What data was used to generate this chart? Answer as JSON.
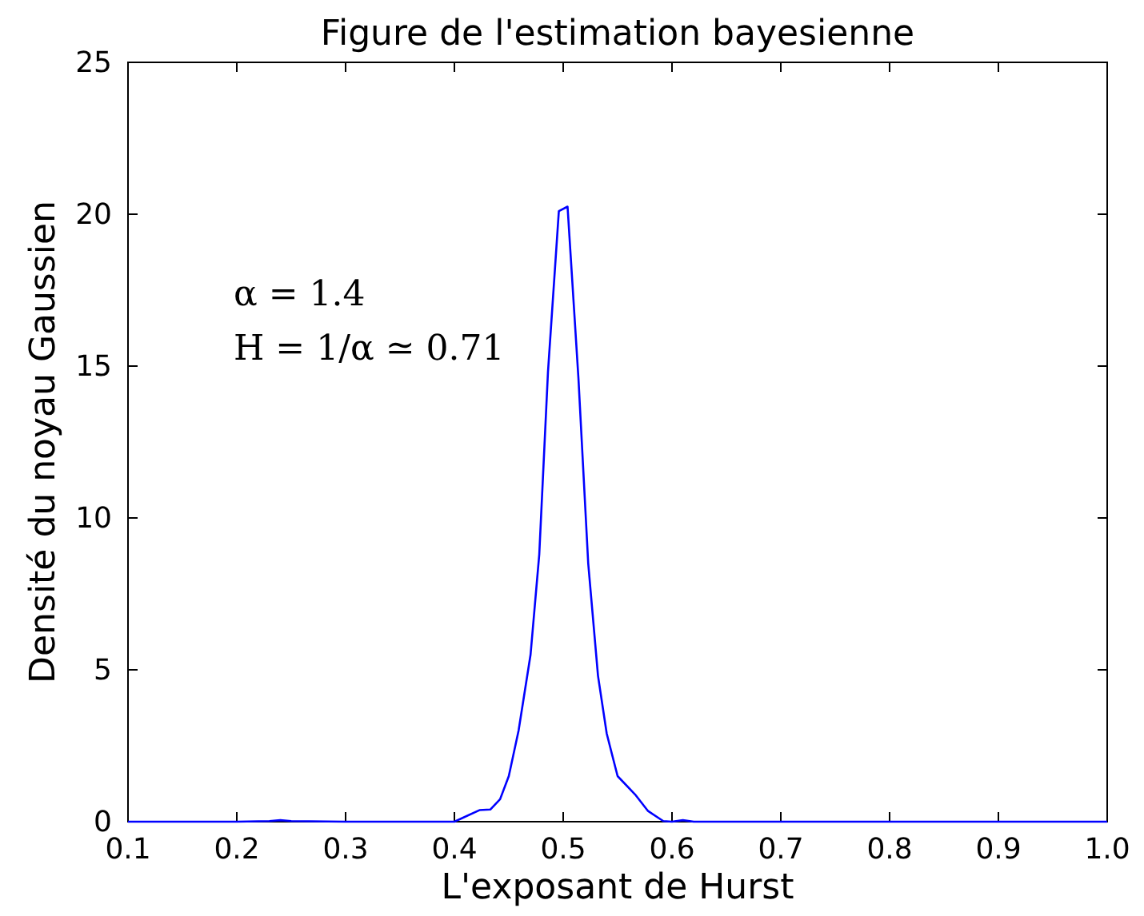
{
  "chart_data": {
    "type": "line",
    "title": "Figure de l'estimation bayesienne",
    "xlabel": "L'exposant de Hurst",
    "ylabel": "Densité du noyau Gaussien",
    "annotations": [
      "α = 1.4",
      "H = 1/α ≃ 0.71"
    ],
    "series": [
      {
        "color": "#0000ff",
        "x": [
          0.1,
          0.2,
          0.23,
          0.24,
          0.25,
          0.3,
          0.4,
          0.423,
          0.433,
          0.442,
          0.45,
          0.459,
          0.47,
          0.478,
          0.486,
          0.496,
          0.504,
          0.514,
          0.523,
          0.532,
          0.54,
          0.55,
          0.566,
          0.578,
          0.592,
          0.6,
          0.61,
          0.62,
          0.7,
          1.0
        ],
        "values": [
          0,
          0,
          0.02,
          0.05,
          0.02,
          0,
          0,
          0.38,
          0.4,
          0.74,
          1.5,
          3.0,
          5.5,
          8.8,
          14.8,
          20.1,
          20.25,
          14.6,
          8.5,
          4.8,
          2.9,
          1.5,
          0.9,
          0.35,
          0.02,
          0,
          0.05,
          0,
          0,
          0
        ]
      }
    ],
    "xlim": [
      0.1,
      1.0
    ],
    "xticks": [
      {
        "value": 0.1,
        "label": "0.1"
      },
      {
        "value": 0.2,
        "label": "0.2"
      },
      {
        "value": 0.3,
        "label": "0.3"
      },
      {
        "value": 0.4,
        "label": "0.4"
      },
      {
        "value": 0.5,
        "label": "0.5"
      },
      {
        "value": 0.6,
        "label": "0.6"
      },
      {
        "value": 0.7,
        "label": "0.7"
      },
      {
        "value": 0.8,
        "label": "0.8"
      },
      {
        "value": 0.9,
        "label": "0.9"
      },
      {
        "value": 1.0,
        "label": "1.0"
      }
    ],
    "ylim": [
      0,
      25
    ],
    "yticks": [
      0,
      5,
      10,
      15,
      20,
      25
    ],
    "grid": false,
    "marker": "none",
    "line_style": "solid"
  }
}
